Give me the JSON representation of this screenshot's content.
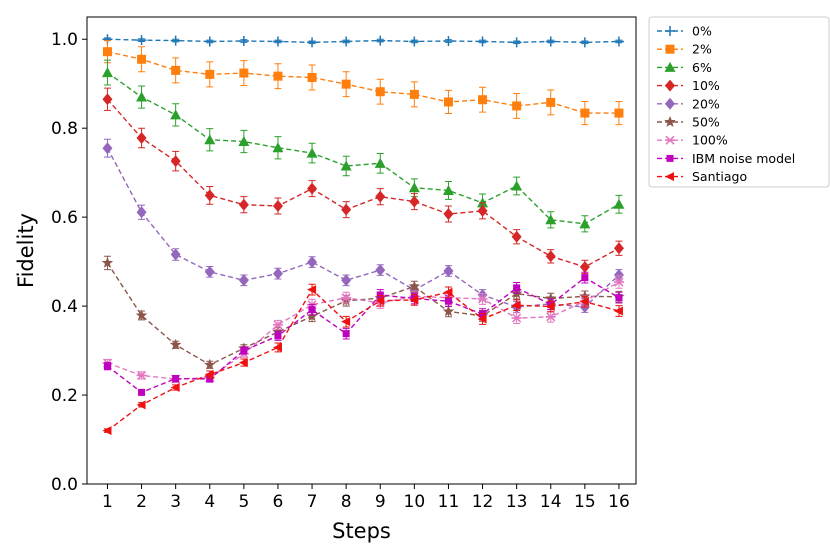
{
  "chart_data": {
    "type": "line",
    "title": "",
    "xlabel": "Steps",
    "ylabel": "Fidelity",
    "xlim": [
      0.4,
      16.5
    ],
    "ylim": [
      0.0,
      1.05
    ],
    "grid": false,
    "legend_position": "outside-top-right",
    "x": [
      1,
      2,
      3,
      4,
      5,
      6,
      7,
      8,
      9,
      10,
      11,
      12,
      13,
      14,
      15,
      16
    ],
    "xticks": [
      "1",
      "2",
      "3",
      "4",
      "5",
      "6",
      "7",
      "8",
      "9",
      "10",
      "11",
      "12",
      "13",
      "14",
      "15",
      "16"
    ],
    "yticks": [
      0.0,
      0.2,
      0.4,
      0.6,
      0.8,
      1.0
    ],
    "ytick_labels": [
      "0.0",
      "0.2",
      "0.4",
      "0.6",
      "0.8",
      "1.0"
    ],
    "series": [
      {
        "name": "0%",
        "color": "#1f77b4",
        "marker": "plus",
        "values": [
          1.0,
          0.998,
          0.997,
          0.995,
          0.996,
          0.995,
          0.993,
          0.995,
          0.997,
          0.995,
          0.996,
          0.995,
          0.993,
          0.995,
          0.993,
          0.995
        ],
        "errors": [
          0.003,
          0.003,
          0.003,
          0.003,
          0.003,
          0.003,
          0.003,
          0.003,
          0.003,
          0.003,
          0.003,
          0.003,
          0.003,
          0.003,
          0.003,
          0.003
        ]
      },
      {
        "name": "2%",
        "color": "#ff7f0e",
        "marker": "square",
        "values": [
          0.972,
          0.955,
          0.93,
          0.921,
          0.924,
          0.917,
          0.914,
          0.899,
          0.882,
          0.876,
          0.859,
          0.864,
          0.85,
          0.858,
          0.834,
          0.834
        ],
        "errors": [
          0.025,
          0.028,
          0.028,
          0.028,
          0.028,
          0.028,
          0.028,
          0.028,
          0.028,
          0.028,
          0.026,
          0.028,
          0.028,
          0.028,
          0.026,
          0.026
        ]
      },
      {
        "name": "6%",
        "color": "#2ca02c",
        "marker": "triangle",
        "values": [
          0.925,
          0.87,
          0.83,
          0.774,
          0.77,
          0.756,
          0.744,
          0.715,
          0.721,
          0.666,
          0.66,
          0.632,
          0.67,
          0.594,
          0.585,
          0.629
        ],
        "errors": [
          0.028,
          0.025,
          0.025,
          0.025,
          0.025,
          0.025,
          0.022,
          0.022,
          0.022,
          0.02,
          0.02,
          0.02,
          0.02,
          0.018,
          0.018,
          0.02
        ]
      },
      {
        "name": "10%",
        "color": "#d62728",
        "marker": "diamond",
        "values": [
          0.865,
          0.778,
          0.726,
          0.649,
          0.628,
          0.625,
          0.664,
          0.617,
          0.646,
          0.635,
          0.607,
          0.614,
          0.556,
          0.512,
          0.488,
          0.53
        ],
        "errors": [
          0.025,
          0.022,
          0.022,
          0.02,
          0.018,
          0.018,
          0.018,
          0.018,
          0.018,
          0.018,
          0.018,
          0.018,
          0.016,
          0.015,
          0.015,
          0.016
        ]
      },
      {
        "name": "20%",
        "color": "#9467bd",
        "marker": "diamond",
        "values": [
          0.755,
          0.611,
          0.516,
          0.477,
          0.458,
          0.473,
          0.499,
          0.458,
          0.481,
          0.436,
          0.479,
          0.425,
          0.398,
          0.405,
          0.398,
          0.47
        ],
        "errors": [
          0.02,
          0.016,
          0.013,
          0.012,
          0.012,
          0.012,
          0.012,
          0.012,
          0.012,
          0.012,
          0.012,
          0.012,
          0.012,
          0.012,
          0.012,
          0.012
        ]
      },
      {
        "name": "50%",
        "color": "#8c564b",
        "marker": "star",
        "values": [
          0.497,
          0.379,
          0.313,
          0.268,
          0.305,
          0.342,
          0.377,
          0.412,
          0.418,
          0.444,
          0.388,
          0.378,
          0.428,
          0.417,
          0.422,
          0.421
        ],
        "errors": [
          0.015,
          0.01,
          0.008,
          0.008,
          0.008,
          0.01,
          0.012,
          0.012,
          0.012,
          0.012,
          0.012,
          0.012,
          0.012,
          0.012,
          0.012,
          0.012
        ]
      },
      {
        "name": "100%",
        "color": "#e377c2",
        "marker": "x",
        "values": [
          0.272,
          0.244,
          0.236,
          0.239,
          0.293,
          0.358,
          0.403,
          0.419,
          0.407,
          0.422,
          0.419,
          0.416,
          0.373,
          0.376,
          0.411,
          0.454
        ],
        "errors": [
          0.008,
          0.008,
          0.008,
          0.008,
          0.008,
          0.01,
          0.012,
          0.012,
          0.012,
          0.012,
          0.012,
          0.012,
          0.012,
          0.012,
          0.012,
          0.014
        ]
      },
      {
        "name": "IBM noise model",
        "color": "#bf00bf",
        "marker": "square-small",
        "values": [
          0.265,
          0.206,
          0.237,
          0.236,
          0.3,
          0.333,
          0.392,
          0.338,
          0.425,
          0.417,
          0.411,
          0.382,
          0.441,
          0.404,
          0.464,
          0.419
        ],
        "errors": [
          0.008,
          0.006,
          0.007,
          0.007,
          0.008,
          0.01,
          0.012,
          0.012,
          0.012,
          0.012,
          0.012,
          0.012,
          0.012,
          0.012,
          0.012,
          0.012
        ]
      },
      {
        "name": "Santiago",
        "color": "#ee1111",
        "marker": "triangle-left",
        "values": [
          0.12,
          0.178,
          0.217,
          0.246,
          0.273,
          0.307,
          0.437,
          0.365,
          0.412,
          0.414,
          0.431,
          0.371,
          0.402,
          0.399,
          0.41,
          0.389
        ],
        "errors": [
          0.004,
          0.005,
          0.006,
          0.008,
          0.008,
          0.01,
          0.012,
          0.012,
          0.012,
          0.012,
          0.012,
          0.012,
          0.012,
          0.012,
          0.012,
          0.012
        ]
      }
    ]
  }
}
